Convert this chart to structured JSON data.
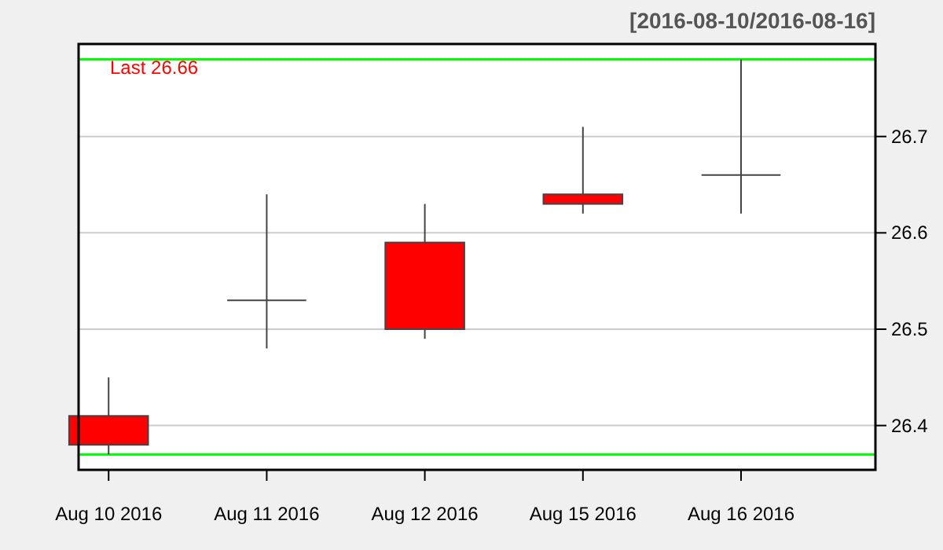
{
  "chart_data": {
    "type": "candlestick",
    "title": "[2016-08-10/2016-08-16]",
    "categories": [
      "Aug 10 2016",
      "Aug 11 2016",
      "Aug 12 2016",
      "Aug 15 2016",
      "Aug 16 2016"
    ],
    "ohlc": [
      [
        26.41,
        26.45,
        26.37,
        26.38
      ],
      [
        26.53,
        26.64,
        26.48,
        26.53
      ],
      [
        26.59,
        26.63,
        26.49,
        26.5
      ],
      [
        26.64,
        26.71,
        26.62,
        26.63
      ],
      [
        26.66,
        26.78,
        26.62,
        26.66
      ]
    ],
    "colors": [
      "#ff0000",
      "#444444",
      "#ff0000",
      "#ff0000",
      "#444444"
    ],
    "ylim": [
      26.354,
      26.796
    ],
    "yticks": [
      26.4,
      26.5,
      26.6,
      26.7
    ],
    "grid": "y",
    "ref_lines": [
      {
        "axis": "y",
        "value": 26.78,
        "color": "#00ff00"
      },
      {
        "axis": "y",
        "value": 26.37,
        "color": "#00ff00"
      }
    ],
    "annotations": [
      "Last 26.66"
    ]
  }
}
